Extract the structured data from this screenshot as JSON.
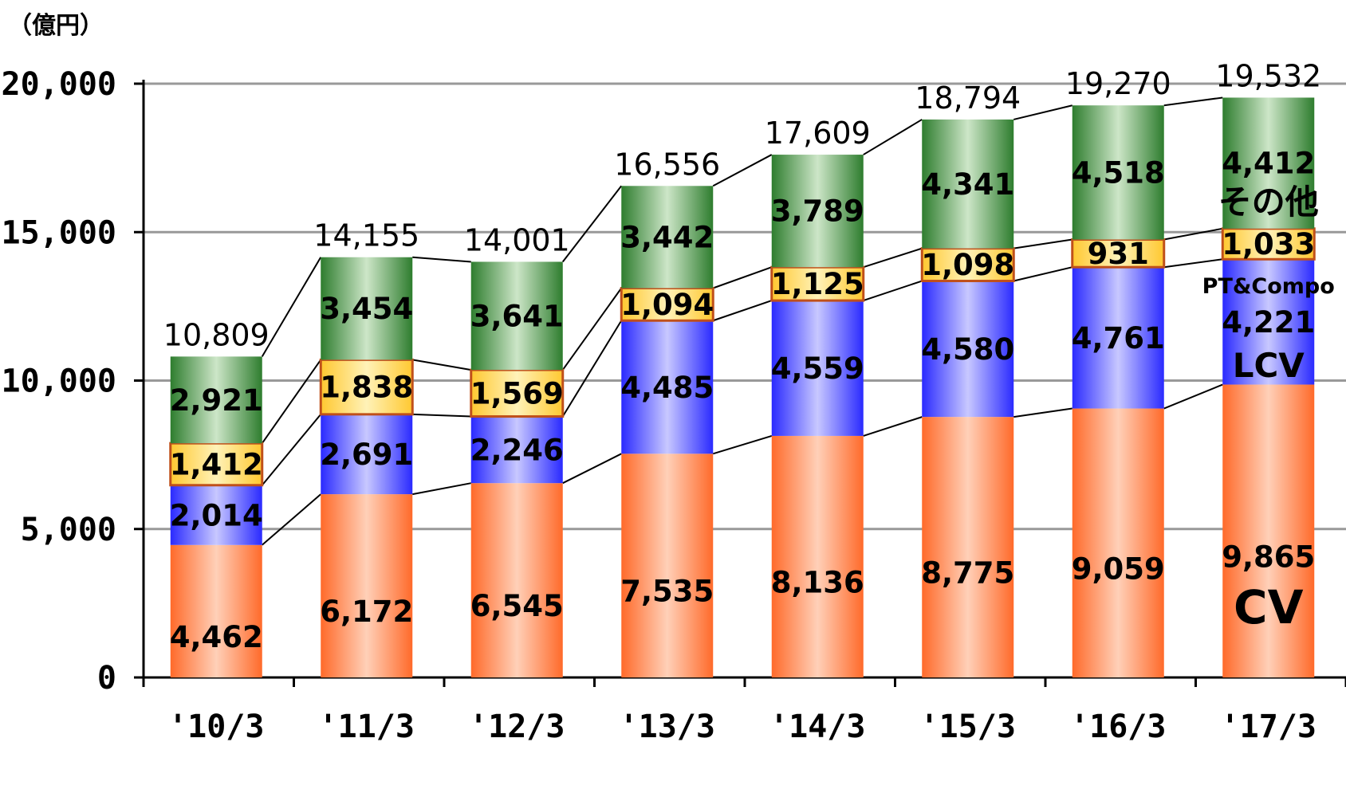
{
  "chart_data": {
    "type": "bar",
    "stacked": true,
    "unit_label": "（億円）",
    "categories": [
      "'10/3",
      "'11/3",
      "'12/3",
      "'13/3",
      "'14/3",
      "'15/3",
      "'16/3",
      "'17/3"
    ],
    "y_ticks": [
      "0",
      "5,000",
      "10,000",
      "15,000",
      "20,000"
    ],
    "ylim": [
      0,
      20000
    ],
    "grid": true,
    "series": [
      {
        "name": "CV",
        "values": [
          4462,
          6172,
          6545,
          7535,
          8136,
          8775,
          9059,
          9865
        ]
      },
      {
        "name": "LCV",
        "values": [
          2014,
          2691,
          2246,
          4485,
          4559,
          4580,
          4761,
          4221
        ]
      },
      {
        "name": "PT&Compo",
        "values": [
          1412,
          1838,
          1569,
          1094,
          1125,
          1098,
          931,
          1033
        ]
      },
      {
        "name": "その他",
        "values": [
          2921,
          3454,
          3641,
          3442,
          3789,
          4341,
          4518,
          4412
        ]
      }
    ],
    "value_labels": [
      [
        "4,462",
        "6,172",
        "6,545",
        "7,535",
        "8,136",
        "8,775",
        "9,059",
        "9,865"
      ],
      [
        "2,014",
        "2,691",
        "2,246",
        "4,485",
        "4,559",
        "4,580",
        "4,761",
        "4,221"
      ],
      [
        "1,412",
        "1,838",
        "1,569",
        "1,094",
        "1,125",
        "1,098",
        "931",
        "1,033"
      ],
      [
        "2,921",
        "3,454",
        "3,641",
        "3,442",
        "3,789",
        "4,341",
        "4,518",
        "4,412"
      ]
    ],
    "totals": [
      "10,809",
      "14,155",
      "14,001",
      "16,556",
      "17,609",
      "18,794",
      "19,270",
      "19,532"
    ],
    "colors": {
      "CV": "#ff6a2a",
      "LCV": "#2a2aff",
      "PT&Compo": "#ffd040",
      "その他": "#2e7d2e"
    }
  }
}
